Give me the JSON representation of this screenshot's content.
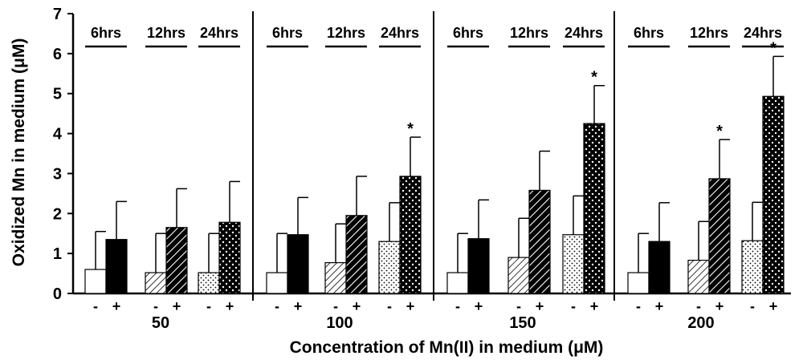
{
  "chart_data": {
    "type": "bar",
    "ylabel": "Oxidized Mn in medium (μM)",
    "xlabel": "Concentration of Mn(II) in medium (μM)",
    "ylim": [
      0,
      7
    ],
    "yticks": [
      "0",
      "1",
      "2",
      "3",
      "4",
      "5",
      "6",
      "7"
    ],
    "time_labels": [
      "6hrs",
      "12hrs",
      "24hrs"
    ],
    "treatment_labels": [
      "-",
      "+"
    ],
    "significance_symbol": "*",
    "groups": [
      {
        "concentration": "50",
        "pairs": [
          {
            "time": "6hrs",
            "minus": {
              "value": 0.6,
              "error": 0.95
            },
            "plus": {
              "value": 1.35,
              "error": 0.95
            },
            "significant": false
          },
          {
            "time": "12hrs",
            "minus": {
              "value": 0.52,
              "error": 0.98
            },
            "plus": {
              "value": 1.65,
              "error": 0.97
            },
            "significant": false
          },
          {
            "time": "24hrs",
            "minus": {
              "value": 0.52,
              "error": 0.98
            },
            "plus": {
              "value": 1.78,
              "error": 1.02
            },
            "significant": false
          }
        ]
      },
      {
        "concentration": "100",
        "pairs": [
          {
            "time": "6hrs",
            "minus": {
              "value": 0.52,
              "error": 0.98
            },
            "plus": {
              "value": 1.47,
              "error": 0.93
            },
            "significant": false
          },
          {
            "time": "12hrs",
            "minus": {
              "value": 0.77,
              "error": 0.97
            },
            "plus": {
              "value": 1.95,
              "error": 0.98
            },
            "significant": false
          },
          {
            "time": "24hrs",
            "minus": {
              "value": 1.3,
              "error": 0.97
            },
            "plus": {
              "value": 2.93,
              "error": 0.98
            },
            "significant": true
          }
        ]
      },
      {
        "concentration": "150",
        "pairs": [
          {
            "time": "6hrs",
            "minus": {
              "value": 0.52,
              "error": 0.98
            },
            "plus": {
              "value": 1.37,
              "error": 0.97
            },
            "significant": false
          },
          {
            "time": "12hrs",
            "minus": {
              "value": 0.9,
              "error": 0.98
            },
            "plus": {
              "value": 2.58,
              "error": 0.98
            },
            "significant": false
          },
          {
            "time": "24hrs",
            "minus": {
              "value": 1.47,
              "error": 0.97
            },
            "plus": {
              "value": 4.25,
              "error": 0.95
            },
            "significant": true
          }
        ]
      },
      {
        "concentration": "200",
        "pairs": [
          {
            "time": "6hrs",
            "minus": {
              "value": 0.52,
              "error": 0.98
            },
            "plus": {
              "value": 1.3,
              "error": 0.97
            },
            "significant": false
          },
          {
            "time": "12hrs",
            "minus": {
              "value": 0.83,
              "error": 0.97
            },
            "plus": {
              "value": 2.87,
              "error": 0.98
            },
            "significant": true
          },
          {
            "time": "24hrs",
            "minus": {
              "value": 1.32,
              "error": 0.96
            },
            "plus": {
              "value": 4.93,
              "error": 1.0
            },
            "significant": true
          }
        ]
      }
    ],
    "colors": {
      "bar_stroke": "#000000",
      "plus_6hrs_fill": "#000000",
      "minus_6hrs_fill": "#ffffff",
      "pattern_bg_plus": "#000000",
      "pattern_bg_minus": "#ffffff"
    }
  }
}
